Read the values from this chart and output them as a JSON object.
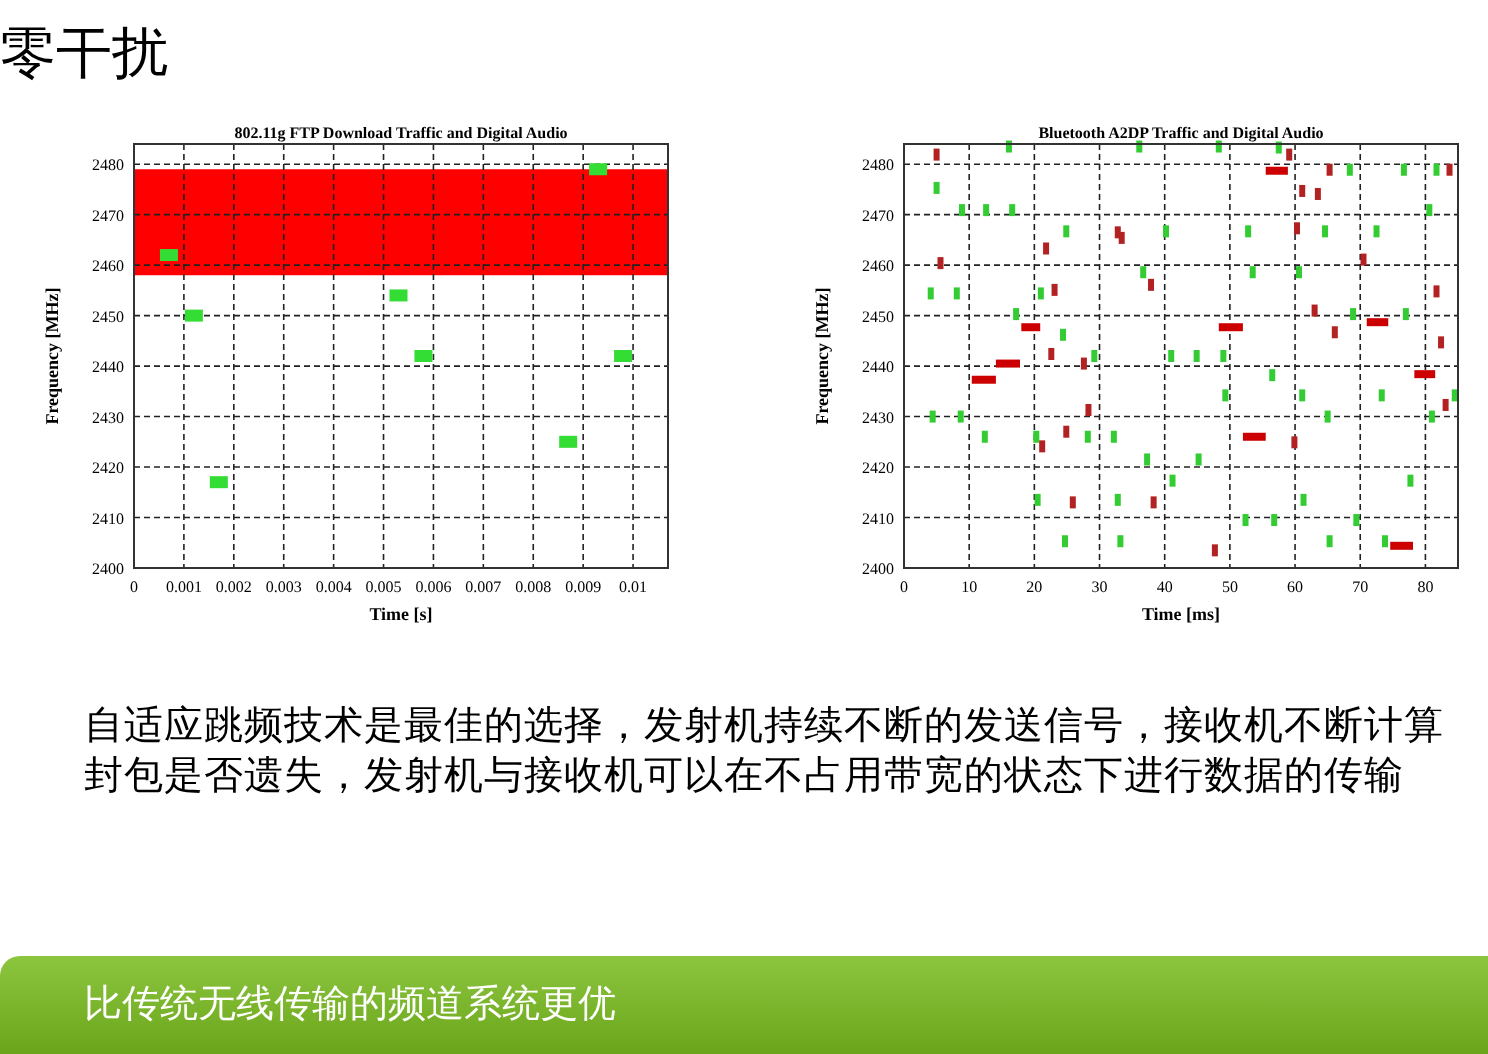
{
  "chart_data": [
    {
      "type": "scatter",
      "title": "802.11g FTP Download Traffic and Digital Audio",
      "xlabel": "Time [s]",
      "ylabel": "Frequency [MHz]",
      "xlim": [
        0,
        0.0107
      ],
      "xticks": [
        0,
        0.001,
        0.002,
        0.003,
        0.004,
        0.005,
        0.006,
        0.007,
        0.008,
        0.009,
        0.01
      ],
      "ylim": [
        2400,
        2484
      ],
      "yticks": [
        2400,
        2410,
        2420,
        2430,
        2440,
        2450,
        2460,
        2470,
        2480
      ],
      "grid": true,
      "marker": "square",
      "bands": [
        {
          "axis": "y",
          "from": 2458,
          "to": 2479,
          "color": "#ff0000"
        }
      ],
      "series": [
        {
          "color": "#33dd33",
          "x": [
            0.0007,
            0.0012,
            0.0017,
            0.0053,
            0.0058,
            0.0087,
            0.0093,
            0.0098
          ],
          "values": [
            2462,
            2450,
            2417,
            2454,
            2442,
            2425,
            2479,
            2442
          ]
        }
      ],
      "annotations": [
        "零干扰",
        "自适应跳频技术是最佳的选择，发射机持续不断的发送信号，接收机不断计算封包是否遗失，发射机与接收机可以在不占用带宽的状态下进行数据的传输",
        "比传统无线传输的频道系统更优"
      ]
    },
    {
      "type": "scatter",
      "title": "Bluetooth A2DP Traffic and Digital Audio",
      "xlabel": "Time [ms]",
      "ylabel": "Frequency [MHz]",
      "xlim": [
        0,
        85
      ],
      "xticks": [
        0,
        10,
        20,
        30,
        40,
        50,
        60,
        70,
        80
      ],
      "ylim": [
        2400,
        2484
      ],
      "yticks": [
        2400,
        2410,
        2420,
        2430,
        2440,
        2450,
        2460,
        2470,
        2480
      ],
      "grid": true,
      "series": [
        {
          "marker": "square",
          "color": "#33cc33",
          "x": [
            16.1,
            36.1,
            48.3,
            57.5,
            5.0,
            8.9,
            12.6,
            16.6,
            24.9,
            40.2,
            52.8,
            64.6,
            72.5,
            80.6,
            68.4,
            76.7,
            81.7,
            36.7,
            53.5,
            60.6,
            4.1,
            8.1,
            21.0,
            17.2,
            24.4,
            29.2,
            41.0,
            44.9,
            49.0,
            56.5,
            49.3,
            61.1,
            73.3,
            84.5,
            68.9,
            77.0,
            4.4,
            8.7,
            65.0,
            81.0,
            12.4,
            20.3,
            28.2,
            32.2,
            37.3,
            45.2,
            41.2,
            77.7,
            20.5,
            32.8,
            61.3,
            52.4,
            56.8,
            69.4,
            24.7,
            33.2,
            65.3,
            73.8
          ],
          "values": [
            2483.5,
            2483.5,
            2483.5,
            2483.3,
            2475.3,
            2470.9,
            2470.9,
            2470.9,
            2466.7,
            2466.7,
            2466.7,
            2466.7,
            2466.7,
            2470.9,
            2478.9,
            2478.9,
            2478.9,
            2458.6,
            2458.6,
            2458.6,
            2454.4,
            2454.4,
            2454.4,
            2450.3,
            2446.2,
            2442.0,
            2442.0,
            2442.0,
            2442.0,
            2438.2,
            2434.2,
            2434.2,
            2434.2,
            2434.2,
            2450.3,
            2450.3,
            2430.0,
            2430.0,
            2430.0,
            2430.0,
            2426.0,
            2426.0,
            2426.0,
            2426.0,
            2421.5,
            2421.5,
            2417.3,
            2417.3,
            2413.5,
            2413.5,
            2413.5,
            2409.5,
            2409.5,
            2409.5,
            2405.3,
            2405.3,
            2405.3,
            2405.3
          ]
        },
        {
          "marker": "square",
          "color": "#b22222",
          "x": [
            5.0,
            59.1,
            83.7,
            61.1,
            63.5,
            65.3,
            60.3,
            32.8,
            33.4,
            21.8,
            5.6,
            70.5,
            37.9,
            23.1,
            81.7,
            63.0,
            66.1,
            82.4,
            22.6,
            27.6,
            28.3,
            83.1,
            24.9,
            21.2,
            59.9,
            25.9,
            38.3,
            47.7
          ],
          "values": [
            2481.9,
            2481.9,
            2478.9,
            2474.7,
            2474.1,
            2478.9,
            2467.3,
            2466.5,
            2465.4,
            2463.3,
            2460.4,
            2461.1,
            2456.1,
            2455.1,
            2454.8,
            2451.0,
            2446.7,
            2444.7,
            2442.4,
            2440.5,
            2431.3,
            2432.3,
            2427.0,
            2424.1,
            2424.9,
            2413.0,
            2413.0,
            2403.5
          ]
        },
        {
          "type": "line",
          "color": "#cc0000",
          "x": [
            55.5,
            58.9
          ],
          "values": [
            2478.7,
            2478.7
          ]
        },
        {
          "type": "line",
          "color": "#cc0000",
          "x": [
            18.0,
            20.9
          ],
          "values": [
            2447.7,
            2447.7
          ]
        },
        {
          "type": "line",
          "color": "#cc0000",
          "x": [
            48.3,
            52.0
          ],
          "values": [
            2447.7,
            2447.7
          ]
        },
        {
          "type": "line",
          "color": "#cc0000",
          "x": [
            71.0,
            74.3
          ],
          "values": [
            2448.7,
            2448.7
          ]
        },
        {
          "type": "line",
          "color": "#cc0000",
          "x": [
            14.1,
            17.8
          ],
          "values": [
            2440.5,
            2440.5
          ]
        },
        {
          "type": "line",
          "color": "#cc0000",
          "x": [
            10.4,
            14.1
          ],
          "values": [
            2437.3,
            2437.3
          ]
        },
        {
          "type": "line",
          "color": "#cc0000",
          "x": [
            78.3,
            81.5
          ],
          "values": [
            2438.4,
            2438.4
          ]
        },
        {
          "type": "line",
          "color": "#cc0000",
          "x": [
            52.0,
            55.5
          ],
          "values": [
            2426.0,
            2426.0
          ]
        },
        {
          "type": "line",
          "color": "#cc0000",
          "x": [
            74.6,
            78.1
          ],
          "values": [
            2404.4,
            2404.4
          ]
        }
      ]
    }
  ]
}
